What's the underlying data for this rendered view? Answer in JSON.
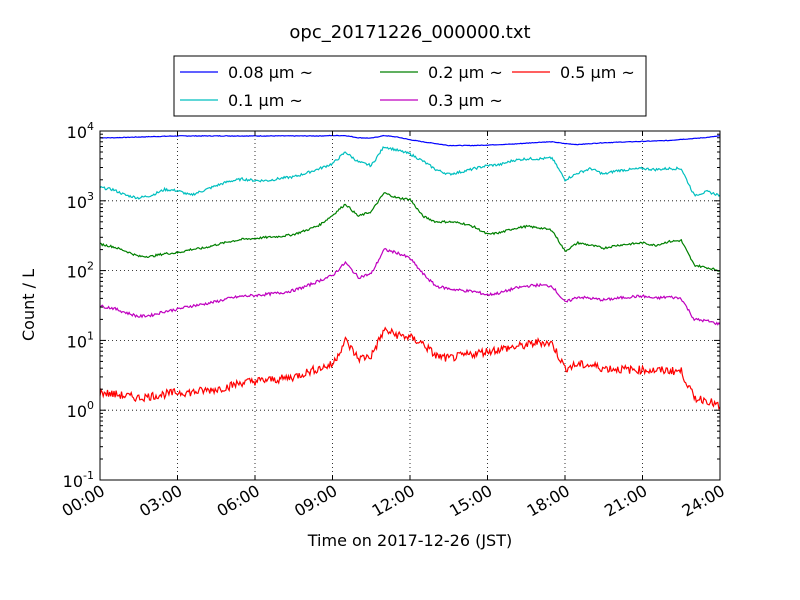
{
  "chart_data": {
    "type": "line",
    "title": "opc_20171226_000000.txt",
    "xlabel": "Time on 2017-12-26 (JST)",
    "ylabel": "Count / L",
    "yscale": "log",
    "ylim": [
      0.1,
      10000
    ],
    "xlim": [
      "00:00",
      "24:00"
    ],
    "grid": true,
    "legend_position": "top-center",
    "x_ticks": [
      "00:00",
      "03:00",
      "06:00",
      "09:00",
      "12:00",
      "15:00",
      "18:00",
      "21:00",
      "24:00"
    ],
    "y_ticks": [
      {
        "base": "10",
        "exp": "-1",
        "value": 0.1
      },
      {
        "base": "10",
        "exp": "0",
        "value": 1
      },
      {
        "base": "10",
        "exp": "1",
        "value": 10
      },
      {
        "base": "10",
        "exp": "2",
        "value": 100
      },
      {
        "base": "10",
        "exp": "3",
        "value": 1000
      },
      {
        "base": "10",
        "exp": "4",
        "value": 10000
      }
    ],
    "x_hours": [
      0,
      0.5,
      1,
      1.5,
      2,
      2.5,
      3,
      3.5,
      4,
      4.5,
      5,
      5.5,
      6,
      6.5,
      7,
      7.5,
      8,
      8.5,
      9,
      9.5,
      10,
      10.5,
      11,
      11.5,
      12,
      12.5,
      13,
      13.5,
      14,
      14.5,
      15,
      15.5,
      16,
      16.5,
      17,
      17.5,
      18,
      18.5,
      19,
      19.5,
      20,
      20.5,
      21,
      21.5,
      22,
      22.5,
      23,
      23.5,
      24
    ],
    "series": [
      {
        "name": "0.08 μm ~",
        "color": "#0000ff",
        "values": [
          8000,
          8000,
          8100,
          8200,
          8300,
          8400,
          8500,
          8500,
          8500,
          8500,
          8500,
          8500,
          8500,
          8500,
          8500,
          8500,
          8500,
          8500,
          8600,
          8600,
          8000,
          7900,
          8600,
          8200,
          7500,
          7000,
          6600,
          6200,
          6200,
          6200,
          6300,
          6400,
          6500,
          6700,
          6900,
          7000,
          6600,
          6400,
          6600,
          6800,
          6900,
          7000,
          7100,
          7200,
          7300,
          7600,
          7800,
          8100,
          8500
        ]
      },
      {
        "name": "0.1 μm ~",
        "color": "#00bfbf",
        "values": [
          1550,
          1450,
          1200,
          1100,
          1200,
          1450,
          1400,
          1200,
          1400,
          1650,
          1900,
          2050,
          1950,
          1950,
          2100,
          2200,
          2500,
          2900,
          3400,
          5000,
          3600,
          3200,
          6000,
          5300,
          4700,
          3700,
          2800,
          2400,
          2600,
          2900,
          3200,
          3300,
          3800,
          4000,
          4000,
          4100,
          2000,
          2500,
          2900,
          2400,
          2700,
          2800,
          2900,
          2800,
          2900,
          2900,
          1200,
          1350,
          1200
        ]
      },
      {
        "name": "0.2 μm ~",
        "color": "#008000",
        "values": [
          240,
          220,
          190,
          160,
          160,
          175,
          180,
          200,
          210,
          235,
          260,
          280,
          290,
          300,
          310,
          330,
          380,
          450,
          620,
          900,
          600,
          700,
          1300,
          1100,
          1050,
          600,
          500,
          500,
          480,
          420,
          330,
          350,
          400,
          430,
          410,
          380,
          190,
          250,
          230,
          210,
          230,
          240,
          250,
          230,
          260,
          270,
          120,
          110,
          100
        ]
      },
      {
        "name": "0.3 μm ~",
        "color": "#bf00bf",
        "values": [
          31,
          29,
          25,
          22,
          23,
          26,
          28,
          31,
          33,
          36,
          40,
          43,
          44,
          46,
          48,
          52,
          60,
          72,
          85,
          130,
          80,
          90,
          200,
          180,
          150,
          90,
          60,
          55,
          52,
          50,
          45,
          48,
          55,
          60,
          62,
          60,
          35,
          42,
          40,
          38,
          40,
          42,
          43,
          40,
          42,
          40,
          20,
          19,
          17
        ]
      },
      {
        "name": "0.5 μm ~",
        "color": "#ff0000",
        "values": [
          1.8,
          1.7,
          1.6,
          1.5,
          1.6,
          1.7,
          1.8,
          1.8,
          1.9,
          2.0,
          2.2,
          2.5,
          2.6,
          2.7,
          2.8,
          3.0,
          3.5,
          4.0,
          4.5,
          10,
          5.5,
          6.0,
          14,
          12,
          11,
          9,
          6,
          5.5,
          6,
          6.5,
          7,
          7.5,
          8,
          8.5,
          9.5,
          9,
          4.0,
          4.5,
          4.4,
          4.0,
          3.9,
          3.8,
          3.8,
          3.7,
          3.7,
          3.6,
          1.5,
          1.4,
          1.1
        ]
      }
    ]
  }
}
